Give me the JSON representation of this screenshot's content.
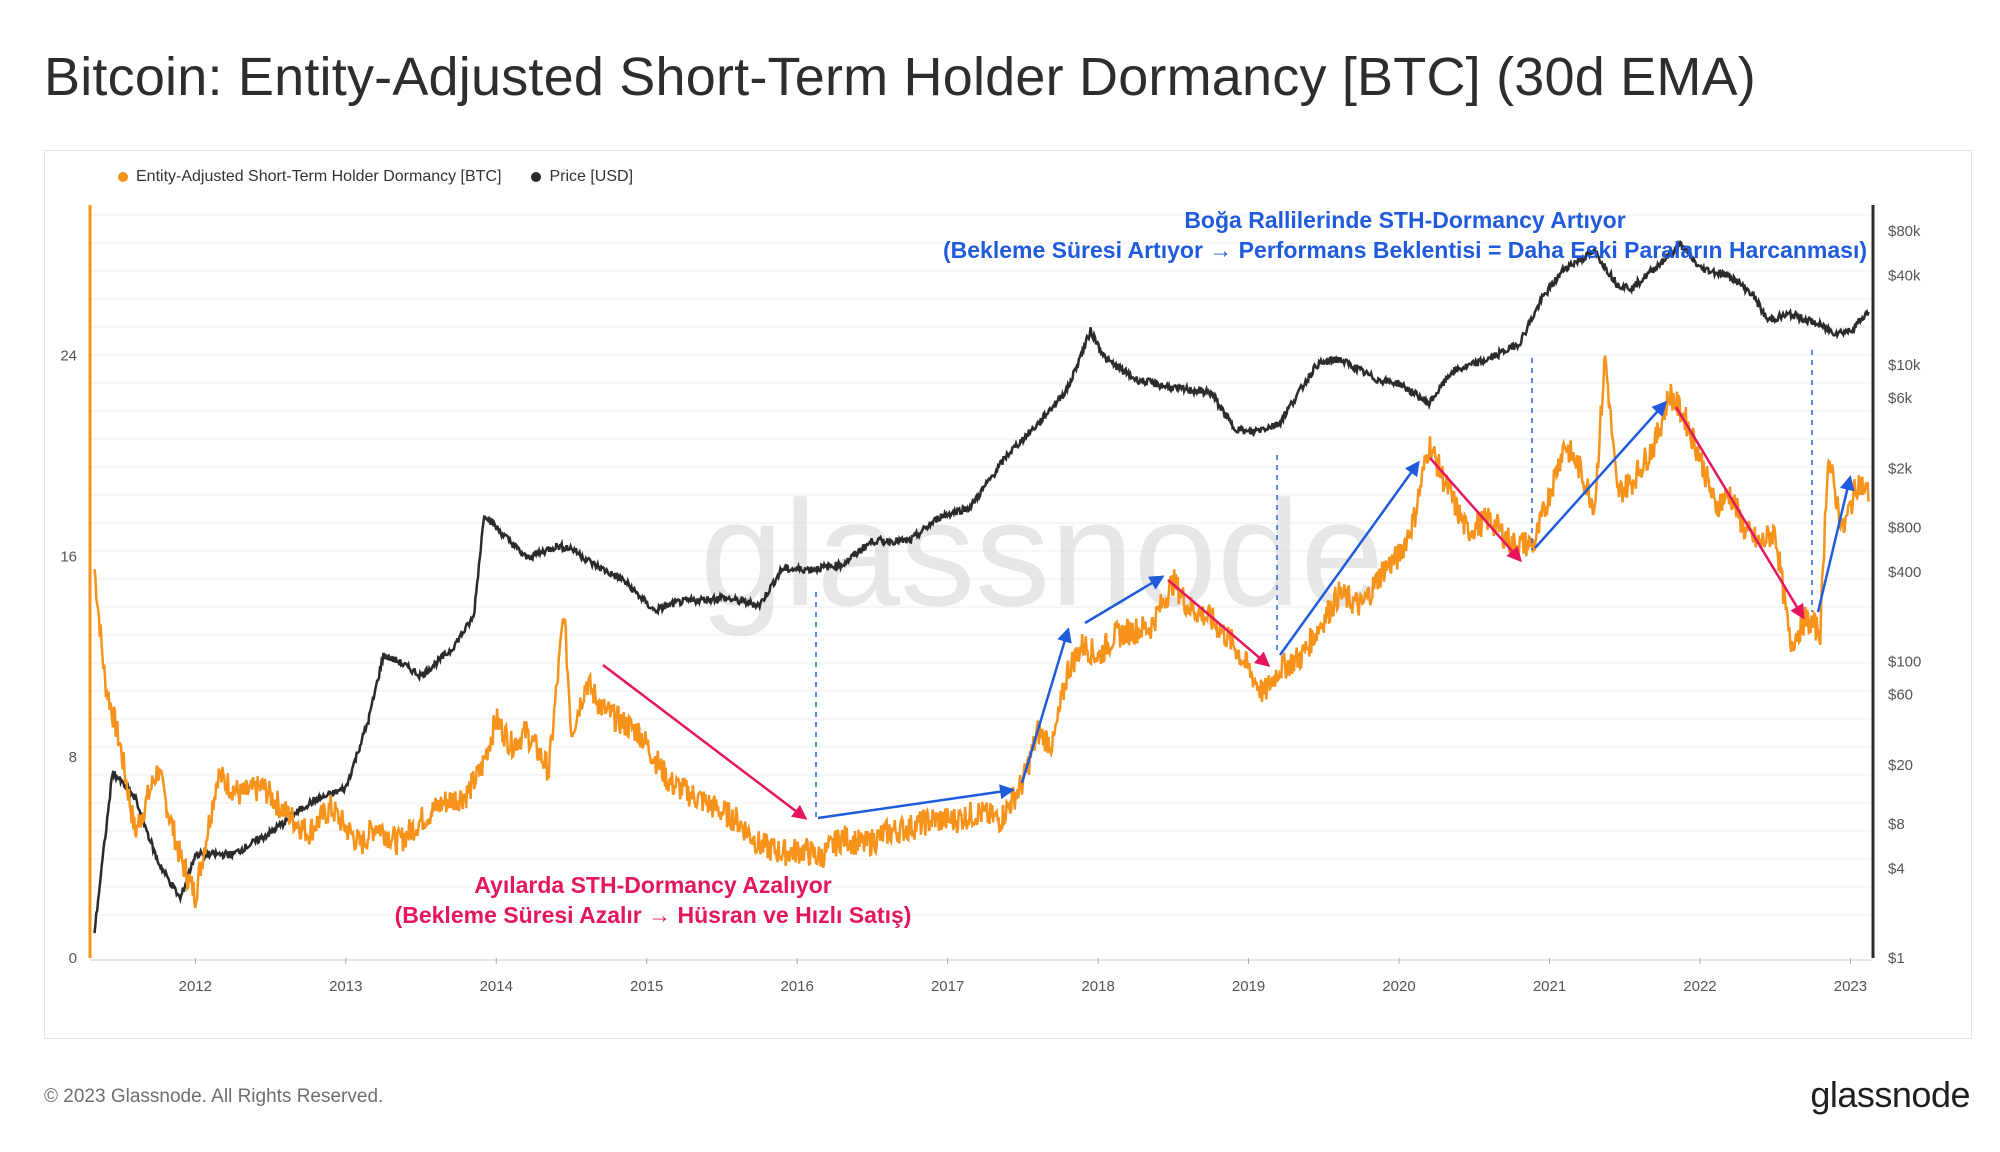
{
  "header": {
    "title": "Bitcoin: Entity-Adjusted Short-Term Holder Dormancy [BTC] (30d EMA)"
  },
  "legend": [
    {
      "label": "Entity-Adjusted Short-Term Holder Dormancy [BTC]",
      "color": "#f7931a"
    },
    {
      "label": "Price [USD]",
      "color": "#2b2b2b"
    }
  ],
  "watermark": "glassnode",
  "annotations": {
    "bull_line1": "Boğa Rallilerinde STH-Dormancy Artıyor",
    "bull_line2": "(Bekleme Süresi Artıyor → Performans Beklentisi = Daha Eski Paraların Harcanması)",
    "bear_line1": "Ayılarda STH-Dormancy Azalıyor",
    "bear_line2": "(Bekleme Süresi Azalır → Hüsran ve Hızlı Satış)"
  },
  "footer": {
    "copyright": "© 2023 Glassnode. All Rights Reserved.",
    "logo": "glassnode"
  },
  "chart_data": {
    "type": "line",
    "x_ticks": [
      "2012",
      "2013",
      "2014",
      "2015",
      "2016",
      "2017",
      "2018",
      "2019",
      "2020",
      "2021",
      "2022",
      "2023"
    ],
    "y_left_ticks": [
      0,
      8,
      16,
      24
    ],
    "y_left_range": [
      0,
      30
    ],
    "y_right_ticks": [
      "$1",
      "$4",
      "$8",
      "$20",
      "$60",
      "$100",
      "$400",
      "$800",
      "$2k",
      "$6k",
      "$10k",
      "$40k",
      "$80k"
    ],
    "y_right_scale": "log",
    "x_range": [
      2011.3,
      2023.15
    ],
    "series": [
      {
        "name": "Entity-Adjusted Short-Term Holder Dormancy [BTC]",
        "color": "#f7931a",
        "axis": "left",
        "points": [
          [
            2011.33,
            15.5
          ],
          [
            2011.4,
            11
          ],
          [
            2011.5,
            8.5
          ],
          [
            2011.6,
            5
          ],
          [
            2011.75,
            7.5
          ],
          [
            2011.9,
            4
          ],
          [
            2012.0,
            2.5
          ],
          [
            2012.15,
            7.3
          ],
          [
            2012.3,
            6.5
          ],
          [
            2012.45,
            6.8
          ],
          [
            2012.6,
            5.8
          ],
          [
            2012.75,
            5.0
          ],
          [
            2012.9,
            6.0
          ],
          [
            2013.0,
            5.2
          ],
          [
            2013.1,
            4.5
          ],
          [
            2013.2,
            5.3
          ],
          [
            2013.35,
            4.6
          ],
          [
            2013.5,
            5.5
          ],
          [
            2013.65,
            6.2
          ],
          [
            2013.8,
            6.5
          ],
          [
            2013.9,
            7.5
          ],
          [
            2014.0,
            9.5
          ],
          [
            2014.1,
            8.5
          ],
          [
            2014.2,
            9.0
          ],
          [
            2014.35,
            7.5
          ],
          [
            2014.45,
            13.8
          ],
          [
            2014.5,
            9.0
          ],
          [
            2014.6,
            11.0
          ],
          [
            2014.7,
            10.0
          ],
          [
            2014.8,
            9.5
          ],
          [
            2014.95,
            9.0
          ],
          [
            2015.05,
            8.0
          ],
          [
            2015.15,
            7.0
          ],
          [
            2015.3,
            6.5
          ],
          [
            2015.45,
            6.0
          ],
          [
            2015.6,
            5.5
          ],
          [
            2015.75,
            4.5
          ],
          [
            2015.9,
            4.2
          ],
          [
            2016.05,
            4.3
          ],
          [
            2016.15,
            4.0
          ],
          [
            2016.3,
            4.8
          ],
          [
            2016.45,
            4.5
          ],
          [
            2016.6,
            5.0
          ],
          [
            2016.75,
            5.2
          ],
          [
            2016.9,
            5.5
          ],
          [
            2017.05,
            5.5
          ],
          [
            2017.2,
            5.8
          ],
          [
            2017.35,
            5.5
          ],
          [
            2017.5,
            7.0
          ],
          [
            2017.6,
            9.0
          ],
          [
            2017.7,
            8.5
          ],
          [
            2017.8,
            11.5
          ],
          [
            2017.9,
            12.5
          ],
          [
            2018.0,
            12.0
          ],
          [
            2018.1,
            12.8
          ],
          [
            2018.2,
            13.0
          ],
          [
            2018.35,
            13.2
          ],
          [
            2018.5,
            15.0
          ],
          [
            2018.6,
            14.0
          ],
          [
            2018.75,
            13.5
          ],
          [
            2018.9,
            12.5
          ],
          [
            2019.0,
            11.5
          ],
          [
            2019.1,
            10.5
          ],
          [
            2019.2,
            11.5
          ],
          [
            2019.35,
            12.0
          ],
          [
            2019.5,
            13.5
          ],
          [
            2019.6,
            14.5
          ],
          [
            2019.75,
            14.0
          ],
          [
            2019.9,
            15.5
          ],
          [
            2020.0,
            16.0
          ],
          [
            2020.1,
            17.5
          ],
          [
            2020.2,
            20.5
          ],
          [
            2020.3,
            19.0
          ],
          [
            2020.45,
            17.0
          ],
          [
            2020.6,
            17.5
          ],
          [
            2020.75,
            16.5
          ],
          [
            2020.9,
            16.5
          ],
          [
            2021.0,
            18.5
          ],
          [
            2021.1,
            20.5
          ],
          [
            2021.2,
            19.5
          ],
          [
            2021.3,
            18.0
          ],
          [
            2021.37,
            24.0
          ],
          [
            2021.45,
            18.5
          ],
          [
            2021.55,
            19.0
          ],
          [
            2021.7,
            20.5
          ],
          [
            2021.8,
            22.5
          ],
          [
            2021.9,
            21.5
          ],
          [
            2022.0,
            20.0
          ],
          [
            2022.1,
            18.0
          ],
          [
            2022.2,
            18.5
          ],
          [
            2022.3,
            17.0
          ],
          [
            2022.4,
            16.5
          ],
          [
            2022.5,
            17.0
          ],
          [
            2022.6,
            12.5
          ],
          [
            2022.7,
            13.5
          ],
          [
            2022.8,
            13.0
          ],
          [
            2022.85,
            20.0
          ],
          [
            2022.95,
            17.0
          ],
          [
            2023.05,
            19.0
          ],
          [
            2023.12,
            18.5
          ]
        ]
      },
      {
        "name": "Price [USD]",
        "color": "#2b2b2b",
        "axis": "right",
        "points": [
          [
            2011.33,
            1.5
          ],
          [
            2011.45,
            18
          ],
          [
            2011.6,
            12
          ],
          [
            2011.75,
            4.5
          ],
          [
            2011.9,
            2.5
          ],
          [
            2012.0,
            5
          ],
          [
            2012.25,
            5
          ],
          [
            2012.5,
            7
          ],
          [
            2012.75,
            11
          ],
          [
            2013.0,
            14
          ],
          [
            2013.15,
            40
          ],
          [
            2013.25,
            110
          ],
          [
            2013.35,
            100
          ],
          [
            2013.5,
            80
          ],
          [
            2013.7,
            120
          ],
          [
            2013.85,
            200
          ],
          [
            2013.92,
            1000
          ],
          [
            2014.0,
            800
          ],
          [
            2014.2,
            500
          ],
          [
            2014.4,
            600
          ],
          [
            2014.5,
            580
          ],
          [
            2014.65,
            450
          ],
          [
            2014.85,
            350
          ],
          [
            2015.05,
            220
          ],
          [
            2015.2,
            250
          ],
          [
            2015.5,
            270
          ],
          [
            2015.75,
            240
          ],
          [
            2015.9,
            420
          ],
          [
            2016.1,
            420
          ],
          [
            2016.3,
            450
          ],
          [
            2016.5,
            650
          ],
          [
            2016.75,
            650
          ],
          [
            2016.95,
            950
          ],
          [
            2017.15,
            1100
          ],
          [
            2017.4,
            2500
          ],
          [
            2017.6,
            4000
          ],
          [
            2017.8,
            7000
          ],
          [
            2017.95,
            17000
          ],
          [
            2018.05,
            11000
          ],
          [
            2018.25,
            8000
          ],
          [
            2018.5,
            7000
          ],
          [
            2018.75,
            6500
          ],
          [
            2018.9,
            3800
          ],
          [
            2019.0,
            3500
          ],
          [
            2019.2,
            4000
          ],
          [
            2019.45,
            10000
          ],
          [
            2019.6,
            11000
          ],
          [
            2019.85,
            8000
          ],
          [
            2020.0,
            7500
          ],
          [
            2020.2,
            5500
          ],
          [
            2020.35,
            9000
          ],
          [
            2020.6,
            11000
          ],
          [
            2020.8,
            14000
          ],
          [
            2020.95,
            28000
          ],
          [
            2021.1,
            45000
          ],
          [
            2021.3,
            58000
          ],
          [
            2021.45,
            35000
          ],
          [
            2021.55,
            33000
          ],
          [
            2021.75,
            50000
          ],
          [
            2021.87,
            65000
          ],
          [
            2022.0,
            45000
          ],
          [
            2022.2,
            40000
          ],
          [
            2022.35,
            30000
          ],
          [
            2022.45,
            20000
          ],
          [
            2022.6,
            22000
          ],
          [
            2022.75,
            19500
          ],
          [
            2022.9,
            16500
          ],
          [
            2023.0,
            17000
          ],
          [
            2023.12,
            23000
          ]
        ]
      }
    ]
  }
}
